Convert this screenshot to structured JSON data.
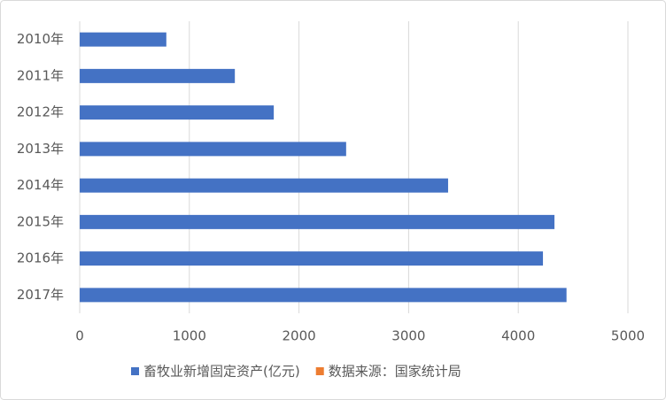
{
  "chart_data": {
    "type": "barh",
    "categories": [
      "2010年",
      "2011年",
      "2012年",
      "2013年",
      "2014年",
      "2015年",
      "2016年",
      "2017年"
    ],
    "series": [
      {
        "name": "畜牧业新增固定资产(亿元)",
        "color": "#4472c4",
        "values": [
          790,
          1415,
          1770,
          2430,
          3360,
          4330,
          4225,
          4440
        ]
      },
      {
        "name": "数据来源：国家统计局",
        "color": "#ed7d31",
        "values": [
          null,
          null,
          null,
          null,
          null,
          null,
          null,
          null
        ]
      }
    ],
    "xlim": [
      0,
      5000
    ],
    "xticks": [
      0,
      1000,
      2000,
      3000,
      4000,
      5000
    ],
    "grid": true,
    "legend": "bottom"
  }
}
